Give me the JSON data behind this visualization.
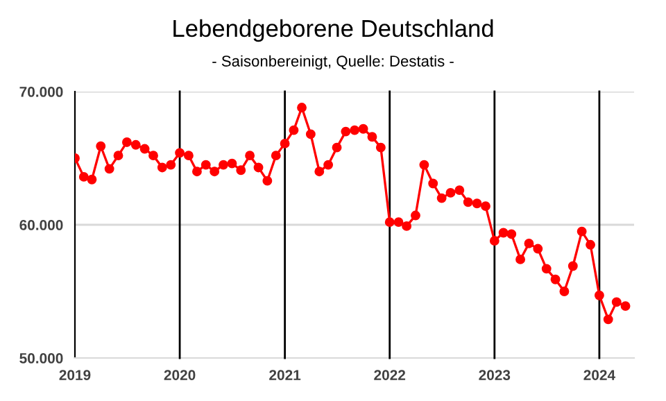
{
  "chart_data": {
    "type": "line",
    "title": "Lebendgeborene Deutschland",
    "subtitle": "- Saisonbereinigt, Quelle: Destatis -",
    "x": [
      "2019-01",
      "2019-02",
      "2019-03",
      "2019-04",
      "2019-05",
      "2019-06",
      "2019-07",
      "2019-08",
      "2019-09",
      "2019-10",
      "2019-11",
      "2019-12",
      "2020-01",
      "2020-02",
      "2020-03",
      "2020-04",
      "2020-05",
      "2020-06",
      "2020-07",
      "2020-08",
      "2020-09",
      "2020-10",
      "2020-11",
      "2020-12",
      "2021-01",
      "2021-02",
      "2021-03",
      "2021-04",
      "2021-05",
      "2021-06",
      "2021-07",
      "2021-08",
      "2021-09",
      "2021-10",
      "2021-11",
      "2021-12",
      "2022-01",
      "2022-02",
      "2022-03",
      "2022-04",
      "2022-05",
      "2022-06",
      "2022-07",
      "2022-08",
      "2022-09",
      "2022-10",
      "2022-11",
      "2022-12",
      "2023-01",
      "2023-02",
      "2023-03",
      "2023-04",
      "2023-05",
      "2023-06",
      "2023-07",
      "2023-08",
      "2023-09",
      "2023-10",
      "2023-11",
      "2023-12",
      "2024-01",
      "2024-02",
      "2024-03",
      "2024-04"
    ],
    "series": [
      {
        "color": "#ff0000",
        "values": [
          65000,
          63600,
          63400,
          65900,
          64200,
          65200,
          66200,
          66000,
          65700,
          65200,
          64300,
          64500,
          65400,
          65200,
          64000,
          64500,
          64000,
          64500,
          64600,
          64100,
          65200,
          64300,
          63300,
          65200,
          66100,
          67100,
          68800,
          66800,
          64000,
          64500,
          65800,
          67000,
          67100,
          67200,
          66600,
          65800,
          60200,
          60200,
          59900,
          60700,
          64500,
          63100,
          62000,
          62400,
          62600,
          61700,
          61600,
          61400,
          58800,
          59400,
          59300,
          57400,
          58600,
          58200,
          56700,
          55900,
          55000,
          56900,
          59500,
          58500,
          54700,
          52900,
          54200,
          53900
        ]
      }
    ],
    "marker": "circle",
    "line_style": "solid",
    "ref_lines": [
      {
        "axis": "x",
        "value": "2020",
        "color": "#000000"
      },
      {
        "axis": "x",
        "value": "2021",
        "color": "#000000"
      },
      {
        "axis": "x",
        "value": "2022",
        "color": "#000000"
      },
      {
        "axis": "x",
        "value": "2023",
        "color": "#000000"
      },
      {
        "axis": "x",
        "value": "2024",
        "color": "#000000"
      },
      {
        "axis": "y",
        "value": 60000,
        "color": "#d9d9d9"
      },
      {
        "axis": "y",
        "value": 70000,
        "color": "#d9d9d9"
      }
    ],
    "xlim": [
      "2019-01",
      "2024-05"
    ],
    "xticks": [
      "2019",
      "2020",
      "2021",
      "2022",
      "2023",
      "2024"
    ],
    "ylim": [
      50000,
      70000
    ],
    "yticks": [
      {
        "value": 50000,
        "label": "50.000"
      },
      {
        "value": 60000,
        "label": "60.000"
      },
      {
        "value": 70000,
        "label": "70.000"
      }
    ]
  }
}
